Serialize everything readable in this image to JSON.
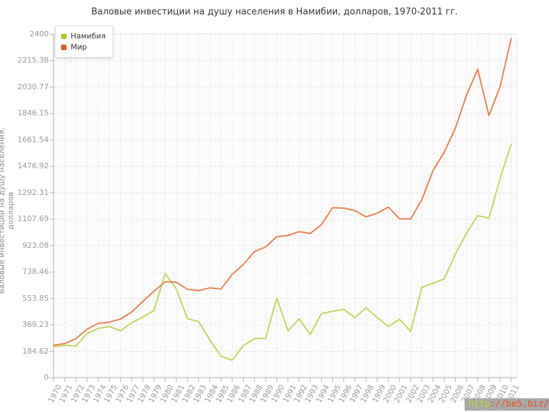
{
  "title": "Валовые инвестиции на душу населения в Намибии, долларов, 1970-2011 гг.",
  "y_axis": {
    "title": "Валовые инвестиции на душу населения, долларов",
    "tick_labels": [
      "0",
      "184.62",
      "369.23",
      "553.85",
      "738.46",
      "923.08",
      "1107.69",
      "1292.31",
      "1476.92",
      "1661.54",
      "1846.15",
      "2030.77",
      "2215.38",
      "2400"
    ],
    "tick_values": [
      0,
      184.62,
      369.23,
      553.85,
      738.46,
      923.08,
      1107.69,
      1292.31,
      1476.92,
      1661.54,
      1846.15,
      2030.77,
      2215.38,
      2400
    ]
  },
  "legend": {
    "items": [
      {
        "label": "Намибия",
        "color": "#aacc28"
      },
      {
        "label": "Мир",
        "color": "#e05a28"
      }
    ]
  },
  "watermark": {
    "prefix": "http",
    "rest": "://be5.biz/",
    "prefix_color": "#c6d41e",
    "rest_color": "#f04a18",
    "bg": "#a8a8a8"
  },
  "colors": {
    "plot_bg": "#fbfbfb",
    "grid": "#e2e2e2",
    "axis": "#b0b0b0",
    "tick_text": "#999999",
    "title_text": "#333333"
  },
  "chart_data": {
    "type": "line",
    "title": "Валовые инвестиции на душу населения в Намибии, долларов, 1970-2011 гг.",
    "xlabel": "",
    "ylabel": "Валовые инвестиции на душу населения, долларов",
    "ylim": [
      0,
      2400
    ],
    "grid": true,
    "legend_position": "top-left",
    "x": [
      1970,
      1971,
      1972,
      1973,
      1974,
      1975,
      1976,
      1977,
      1978,
      1979,
      1980,
      1981,
      1982,
      1983,
      1984,
      1985,
      1986,
      1987,
      1988,
      1989,
      1990,
      1991,
      1992,
      1993,
      1994,
      1995,
      1996,
      1997,
      1998,
      1999,
      2000,
      2001,
      2002,
      2003,
      2004,
      2005,
      2006,
      2007,
      2008,
      2009,
      2010,
      2011
    ],
    "series": [
      {
        "name": "Намибия",
        "line_color": "#c4d45c",
        "values": [
          216,
          226,
          221,
          308,
          344,
          357,
          328,
          384,
          424,
          469,
          728,
          620,
          413,
          392,
          264,
          150,
          122,
          224,
          273,
          275,
          557,
          327,
          412,
          302,
          448,
          464,
          477,
          419,
          488,
          420,
          358,
          408,
          323,
          632,
          660,
          690,
          865,
          1010,
          1133,
          1115,
          1390,
          1632
        ]
      },
      {
        "name": "Мир",
        "line_color": "#e8814f",
        "values": [
          227,
          238,
          272,
          339,
          379,
          388,
          410,
          459,
          533,
          605,
          670,
          667,
          618,
          608,
          628,
          620,
          722,
          790,
          882,
          914,
          986,
          994,
          1021,
          1008,
          1070,
          1188,
          1185,
          1168,
          1124,
          1150,
          1193,
          1110,
          1110,
          1245,
          1448,
          1576,
          1744,
          1975,
          2155,
          1833,
          2032,
          2370
        ]
      }
    ]
  }
}
